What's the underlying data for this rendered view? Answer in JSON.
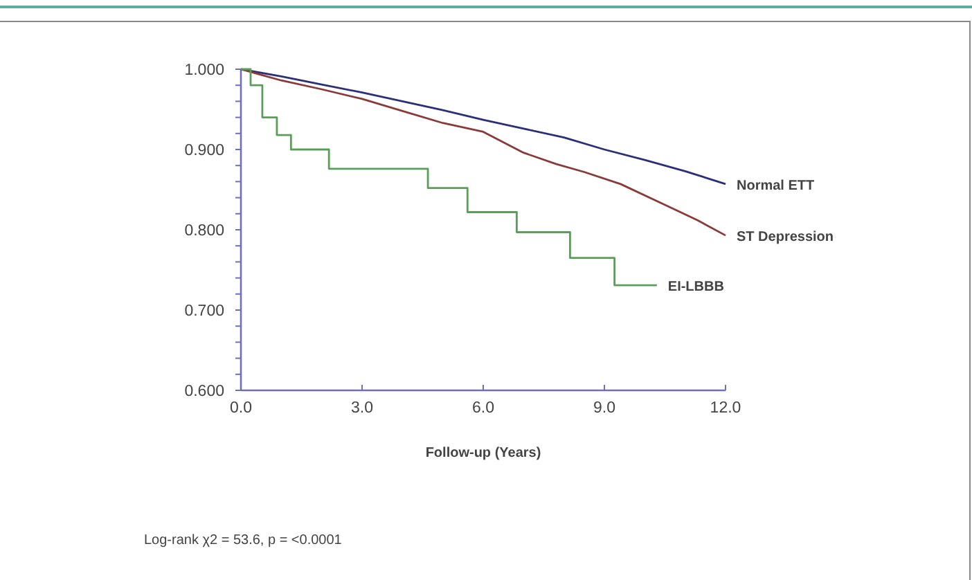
{
  "chart_data": {
    "type": "line",
    "xlabel": "Follow-up (Years)",
    "annotations": [
      "Log-rank χ2 = 53.6, p = <0.0001"
    ],
    "xlim": [
      0,
      12
    ],
    "ylim": [
      0.6,
      1.0
    ],
    "xticks": [
      {
        "value": 0,
        "label": "0.0"
      },
      {
        "value": 3,
        "label": "3.0"
      },
      {
        "value": 6,
        "label": "6.0"
      },
      {
        "value": 9,
        "label": "9.0"
      },
      {
        "value": 12,
        "label": "12.0"
      }
    ],
    "yticks": [
      {
        "value": 0.6,
        "label": "0.600"
      },
      {
        "value": 0.62,
        "label": null
      },
      {
        "value": 0.64,
        "label": null
      },
      {
        "value": 0.66,
        "label": null
      },
      {
        "value": 0.68,
        "label": null
      },
      {
        "value": 0.7,
        "label": "0.700"
      },
      {
        "value": 0.72,
        "label": null
      },
      {
        "value": 0.74,
        "label": null
      },
      {
        "value": 0.76,
        "label": null
      },
      {
        "value": 0.78,
        "label": null
      },
      {
        "value": 0.8,
        "label": "0.800"
      },
      {
        "value": 0.82,
        "label": null
      },
      {
        "value": 0.84,
        "label": null
      },
      {
        "value": 0.86,
        "label": null
      },
      {
        "value": 0.88,
        "label": null
      },
      {
        "value": 0.9,
        "label": "0.900"
      },
      {
        "value": 0.92,
        "label": null
      },
      {
        "value": 0.94,
        "label": null
      },
      {
        "value": 0.96,
        "label": null
      },
      {
        "value": 0.98,
        "label": null
      },
      {
        "value": 1.0,
        "label": "1.000"
      }
    ],
    "grid": false,
    "legend": false,
    "marker": "none",
    "series": [
      {
        "name": "Normal ETT",
        "color": "#2b2f7a",
        "x": [
          0,
          1,
          2,
          3,
          4,
          5,
          6,
          7,
          8,
          9,
          10,
          11,
          12
        ],
        "values": [
          1.0,
          0.991,
          0.981,
          0.971,
          0.96,
          0.949,
          0.937,
          0.926,
          0.915,
          0.9,
          0.887,
          0.873,
          0.857
        ]
      },
      {
        "name": "ST Depression",
        "color": "#8b3a3a",
        "x": [
          0,
          0.5,
          1,
          2,
          3,
          4,
          5,
          6,
          7,
          7.8,
          8.5,
          9.4,
          10.5,
          11.3,
          12
        ],
        "values": [
          1.0,
          0.993,
          0.986,
          0.975,
          0.963,
          0.948,
          0.933,
          0.922,
          0.896,
          0.882,
          0.872,
          0.857,
          0.831,
          0.812,
          0.793
        ]
      },
      {
        "name": "EI-LBBB",
        "type": "step",
        "color": "#5a9e5a",
        "x": [
          0,
          0.24,
          0.53,
          0.89,
          1.24,
          2.18,
          4.63,
          5.61,
          6.83,
          8.15,
          9.25,
          10.3
        ],
        "values": [
          1.0,
          0.98,
          0.94,
          0.918,
          0.9,
          0.876,
          0.852,
          0.822,
          0.797,
          0.765,
          0.731,
          0.731
        ]
      }
    ]
  }
}
